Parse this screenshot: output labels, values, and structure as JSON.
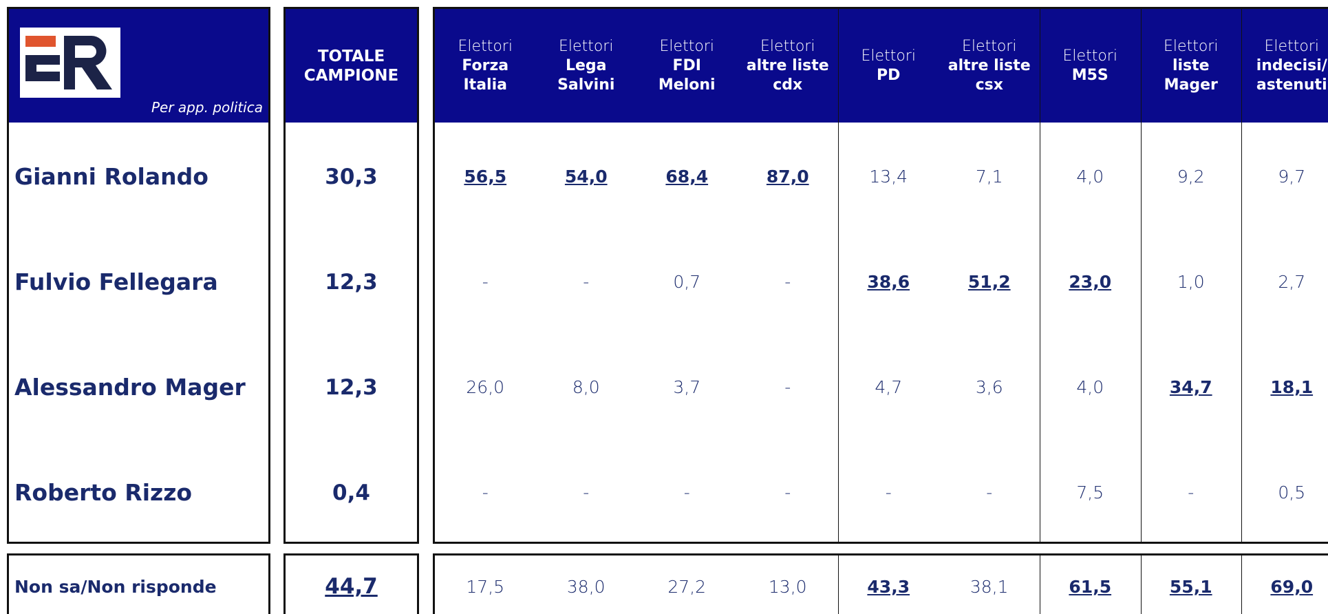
{
  "header": {
    "subtitle": "Per app. politica",
    "total_label": [
      "TOTALE",
      "CAMPIONE"
    ],
    "columns": [
      {
        "top": "Elettori",
        "bold": [
          "Forza",
          "Italia"
        ]
      },
      {
        "top": "Elettori",
        "bold": [
          "Lega",
          "Salvini"
        ]
      },
      {
        "top": "Elettori",
        "bold": [
          "FDI",
          "Meloni"
        ]
      },
      {
        "top": "Elettori",
        "bold": [
          "altre liste",
          "cdx"
        ]
      },
      {
        "top": "Elettori",
        "bold": [
          "PD"
        ]
      },
      {
        "top": "Elettori",
        "bold": [
          "altre liste",
          "csx"
        ]
      },
      {
        "top": "Elettori",
        "bold": [
          "M5S"
        ]
      },
      {
        "top": "Elettori",
        "bold": [
          "liste",
          "Mager"
        ]
      },
      {
        "top": "Elettori",
        "bold": [
          "indecisi/",
          "astenuti"
        ]
      }
    ]
  },
  "table": {
    "rows": [
      {
        "name": "Gianni Rolando",
        "total": "30,3",
        "values": [
          "56,5",
          "54,0",
          "68,4",
          "87,0",
          "13,4",
          "7,1",
          "4,0",
          "9,2",
          "9,7"
        ],
        "highlight": [
          true,
          true,
          true,
          true,
          false,
          false,
          false,
          false,
          false
        ]
      },
      {
        "name": "Fulvio Fellegara",
        "total": "12,3",
        "values": [
          "-",
          "-",
          "0,7",
          "-",
          "38,6",
          "51,2",
          "23,0",
          "1,0",
          "2,7"
        ],
        "highlight": [
          false,
          false,
          false,
          false,
          true,
          true,
          true,
          false,
          false
        ]
      },
      {
        "name": "Alessandro Mager",
        "total": "12,3",
        "values": [
          "26,0",
          "8,0",
          "3,7",
          "-",
          "4,7",
          "3,6",
          "4,0",
          "34,7",
          "18,1"
        ],
        "highlight": [
          false,
          false,
          false,
          false,
          false,
          false,
          false,
          true,
          true
        ]
      },
      {
        "name": "Roberto Rizzo",
        "total": "0,4",
        "values": [
          "-",
          "-",
          "-",
          "-",
          "-",
          "-",
          "7,5",
          "-",
          "0,5"
        ],
        "highlight": [
          false,
          false,
          false,
          false,
          false,
          false,
          false,
          false,
          false
        ]
      }
    ],
    "footer": {
      "name": "Non sa/Non risponde",
      "total": "44,7",
      "total_highlight": true,
      "values": [
        "17,5",
        "38,0",
        "27,2",
        "13,0",
        "43,3",
        "38,1",
        "61,5",
        "55,1",
        "69,0"
      ],
      "highlight": [
        false,
        false,
        false,
        false,
        true,
        false,
        true,
        true,
        true
      ]
    }
  }
}
